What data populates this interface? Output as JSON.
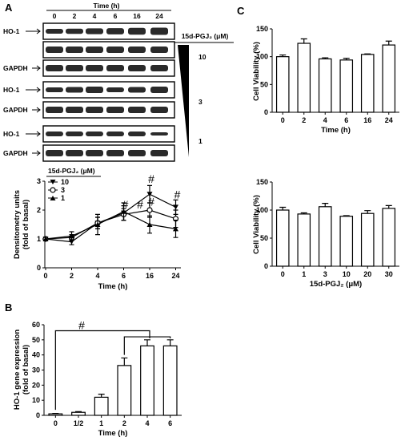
{
  "panels": {
    "a": {
      "letter": "A",
      "blot": {
        "time_label": "Time (h)",
        "time_points": [
          "0",
          "2",
          "4",
          "6",
          "16",
          "24"
        ],
        "treatment_label": "15d-PGJ₂ (μM)",
        "rows": [
          {
            "label": "HO-1",
            "dose": "10"
          },
          {
            "label": "GAPDH",
            "dose": ""
          },
          {
            "label": "HO-1",
            "dose": "3"
          },
          {
            "label": "GAPDH",
            "dose": ""
          },
          {
            "label": "HO-1",
            "dose": "1"
          },
          {
            "label": "GAPDH",
            "dose": ""
          }
        ]
      }
    },
    "b": {
      "letter": "B"
    },
    "c": {
      "letter": "C"
    }
  },
  "chart_data": [
    {
      "id": "a-line",
      "type": "line",
      "xlabel": "Time (h)",
      "ylabel": "Densitometry units (fold of basal)",
      "legend_title": "15d-PGJ₂ (μM)",
      "legend_position": "top-left",
      "x": [
        0,
        2,
        4,
        6,
        16,
        24
      ],
      "x_tick_labels": [
        "0",
        "2",
        "4",
        "6",
        "16",
        "24"
      ],
      "y_ticks": [
        0,
        1,
        2,
        3
      ],
      "ylim": [
        0,
        3
      ],
      "series": [
        {
          "name": "10",
          "marker": "triangle-down",
          "values": [
            1.0,
            0.9,
            1.55,
            1.9,
            2.55,
            2.1
          ],
          "errors": [
            0.05,
            0.1,
            0.2,
            0.25,
            0.3,
            0.25
          ]
        },
        {
          "name": "3",
          "marker": "circle",
          "values": [
            1.0,
            1.05,
            1.55,
            1.85,
            2.0,
            1.7
          ],
          "errors": [
            0.05,
            0.1,
            0.2,
            0.2,
            0.25,
            0.3
          ]
        },
        {
          "name": "1",
          "marker": "triangle-up",
          "values": [
            1.0,
            1.1,
            1.5,
            1.95,
            1.5,
            1.35
          ],
          "errors": [
            0.05,
            0.15,
            0.35,
            0.3,
            0.3,
            0.3
          ]
        }
      ],
      "significance": [
        {
          "x": 6,
          "y": 2.05,
          "label": "#"
        },
        {
          "x": 16,
          "y": 2.95,
          "label": "#"
        },
        {
          "x": 16,
          "y": 2.15,
          "label": "#"
        },
        {
          "x": 24,
          "y": 2.4,
          "label": "#"
        },
        {
          "x": 16,
          "y": 2.05,
          "label": "#",
          "offset": "left"
        }
      ]
    },
    {
      "id": "b-bar",
      "type": "bar",
      "xlabel": "Time (h)",
      "ylabel": "HO-1 gene expression (fold of basal)",
      "categories": [
        "0",
        "1/2",
        "1",
        "2",
        "4",
        "6"
      ],
      "values": [
        1,
        2,
        12,
        33,
        46,
        46
      ],
      "errors": [
        0.3,
        0.5,
        2,
        5,
        4,
        4
      ],
      "y_ticks": [
        0,
        10,
        20,
        30,
        40,
        50,
        60
      ],
      "ylim": [
        0,
        60
      ],
      "significance_label": "#"
    },
    {
      "id": "c-bar-time",
      "type": "bar",
      "xlabel": "Time (h)",
      "ylabel": "Cell Viability (%)",
      "categories": [
        "0",
        "2",
        "4",
        "6",
        "16",
        "24"
      ],
      "values": [
        100,
        124,
        96,
        94,
        104,
        121
      ],
      "errors": [
        3,
        8,
        2,
        3,
        1,
        7
      ],
      "y_ticks": [
        0,
        50,
        100,
        150
      ],
      "ylim": [
        0,
        150
      ]
    },
    {
      "id": "c-bar-dose",
      "type": "bar",
      "xlabel": "15d-PGJ₂ (μM)",
      "ylabel": "Cell Viability (%)",
      "categories": [
        "0",
        "1",
        "3",
        "10",
        "20",
        "30"
      ],
      "values": [
        100,
        93,
        106,
        89,
        94,
        103
      ],
      "errors": [
        5,
        2,
        6,
        1,
        5,
        5
      ],
      "y_ticks": [
        0,
        50,
        100,
        150
      ],
      "ylim": [
        0,
        150
      ]
    }
  ]
}
